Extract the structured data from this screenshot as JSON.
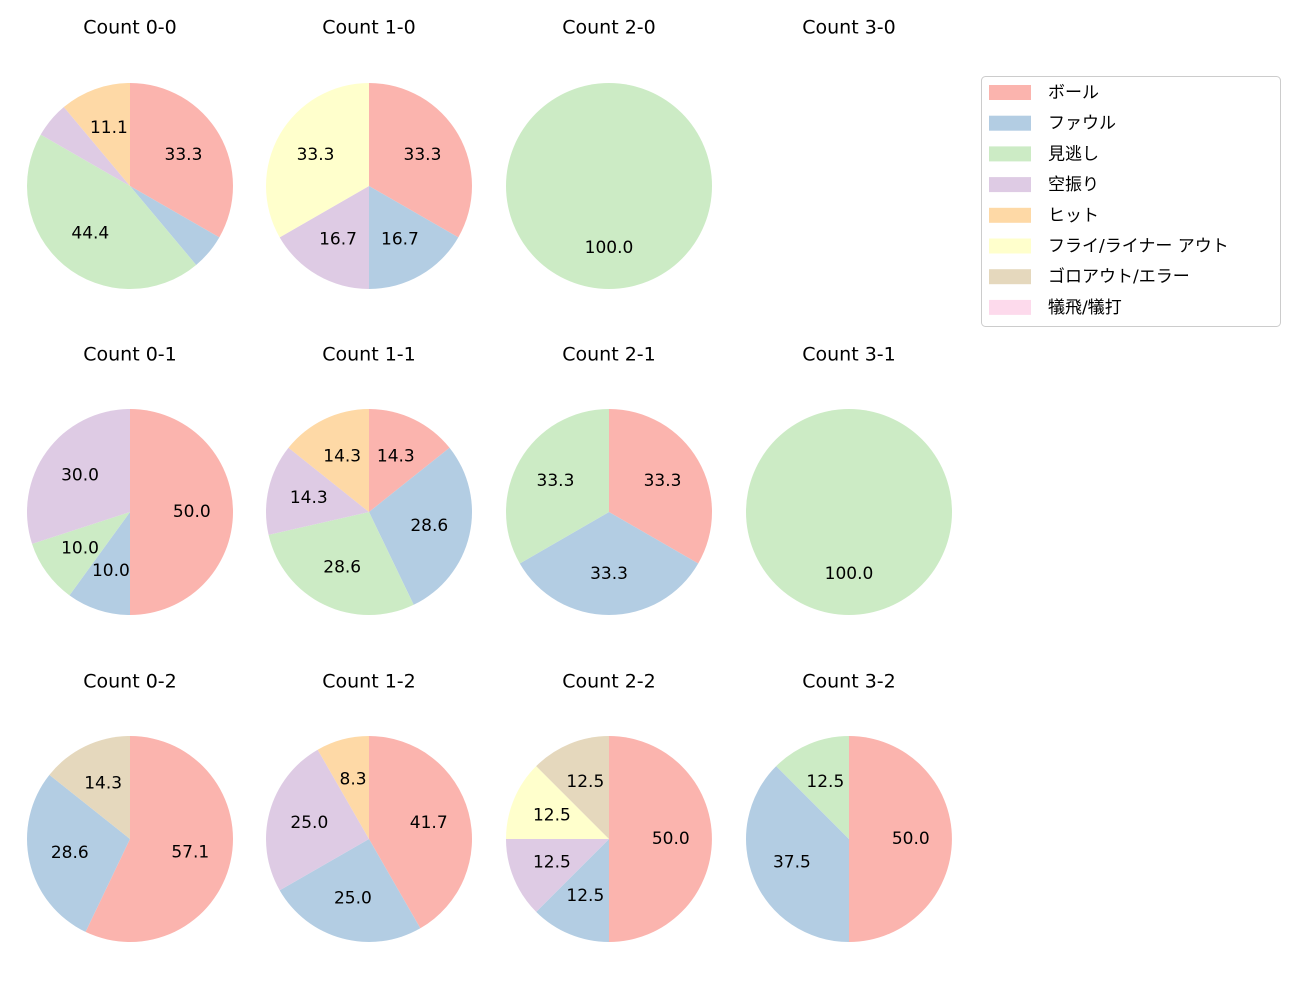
{
  "chart_data": [
    {
      "type": "pie",
      "title": "Count 0-0",
      "values": [
        33.3,
        5.6,
        44.4,
        5.6,
        11.1,
        null,
        null,
        null
      ],
      "value_labels": [
        "33.3",
        null,
        "44.4",
        null,
        "11.1",
        null,
        null,
        null
      ]
    },
    {
      "type": "pie",
      "title": "Count 1-0",
      "values": [
        33.3,
        16.7,
        null,
        16.7,
        null,
        33.3,
        null,
        null
      ],
      "value_labels": [
        "33.3",
        "16.7",
        null,
        "16.7",
        null,
        "33.3",
        null,
        null
      ]
    },
    {
      "type": "pie",
      "title": "Count 2-0",
      "values": [
        null,
        null,
        100,
        null,
        null,
        null,
        null,
        null
      ],
      "value_labels": [
        null,
        null,
        "100.0",
        null,
        null,
        null,
        null,
        null
      ]
    },
    {
      "type": "pie",
      "title": "Count 3-0",
      "values": [
        null,
        null,
        null,
        null,
        null,
        null,
        null,
        null
      ],
      "value_labels": [
        null,
        null,
        null,
        null,
        null,
        null,
        null,
        null
      ]
    },
    {
      "type": "pie",
      "title": "Count 0-1",
      "values": [
        50,
        10,
        10,
        30,
        null,
        null,
        null,
        null
      ],
      "value_labels": [
        "50.0",
        "10.0",
        "10.0",
        "30.0",
        null,
        null,
        null,
        null
      ]
    },
    {
      "type": "pie",
      "title": "Count 1-1",
      "values": [
        14.3,
        28.6,
        28.6,
        14.3,
        14.3,
        null,
        null,
        null
      ],
      "value_labels": [
        "14.3",
        "28.6",
        "28.6",
        "14.3",
        "14.3",
        null,
        null,
        null
      ]
    },
    {
      "type": "pie",
      "title": "Count 2-1",
      "values": [
        33.3,
        33.3,
        33.3,
        null,
        null,
        null,
        null,
        null
      ],
      "value_labels": [
        "33.3",
        "33.3",
        "33.3",
        null,
        null,
        null,
        null,
        null
      ]
    },
    {
      "type": "pie",
      "title": "Count 3-1",
      "values": [
        null,
        null,
        100,
        null,
        null,
        null,
        null,
        null
      ],
      "value_labels": [
        null,
        null,
        "100.0",
        null,
        null,
        null,
        null,
        null
      ]
    },
    {
      "type": "pie",
      "title": "Count 0-2",
      "values": [
        57.1,
        28.6,
        null,
        null,
        null,
        null,
        14.3,
        null
      ],
      "value_labels": [
        "57.1",
        "28.6",
        null,
        null,
        null,
        null,
        "14.3",
        null
      ]
    },
    {
      "type": "pie",
      "title": "Count 1-2",
      "values": [
        41.7,
        25,
        null,
        25,
        8.3,
        null,
        null,
        null
      ],
      "value_labels": [
        "41.7",
        "25.0",
        null,
        "25.0",
        "8.3",
        null,
        null,
        null
      ]
    },
    {
      "type": "pie",
      "title": "Count 2-2",
      "values": [
        50,
        12.5,
        null,
        12.5,
        null,
        12.5,
        12.5,
        null
      ],
      "value_labels": [
        "50.0",
        "12.5",
        null,
        "12.5",
        null,
        "12.5",
        "12.5",
        null
      ]
    },
    {
      "type": "pie",
      "title": "Count 3-2",
      "values": [
        50,
        37.5,
        12.5,
        null,
        null,
        null,
        null,
        null
      ],
      "value_labels": [
        "50.0",
        "37.5",
        "12.5",
        null,
        null,
        null,
        null,
        null
      ]
    }
  ],
  "legend": {
    "position": "upper right",
    "categories": [
      "ボール",
      "ファウル",
      "見逃し",
      "空振り",
      "ヒット",
      "フライ/ライナー アウト",
      "ゴロアウト/エラー",
      "犠飛/犠打"
    ],
    "colors": [
      "#fbb4ae",
      "#b3cde3",
      "#ccebc5",
      "#decbe4",
      "#fed9a6",
      "#ffffcc",
      "#e5d8bd",
      "#fddaec"
    ]
  }
}
